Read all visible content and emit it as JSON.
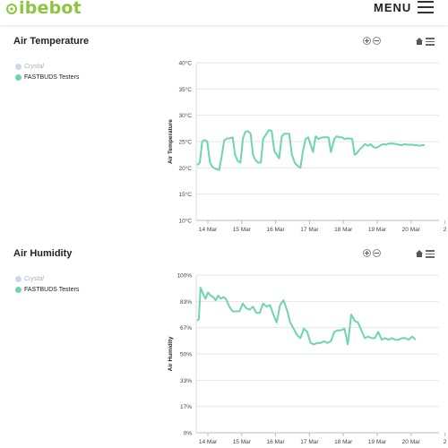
{
  "header": {
    "logo_text": "ibebot",
    "menu_label": "MENU",
    "brand_color": "#8cc63f"
  },
  "legend": {
    "items": [
      {
        "label": "Crystal",
        "color": "#c9d9ec",
        "muted": true
      },
      {
        "label": "FASTBUDS Testers",
        "color": "#6fd6a8",
        "muted": false
      }
    ]
  },
  "chart_data": [
    {
      "type": "line",
      "title": "Air Temperature",
      "ylabel": "Air Temperature",
      "yticks": [
        "10°C",
        "15°C",
        "20°C",
        "25°C",
        "30°C",
        "35°C",
        "40°C"
      ],
      "ylim": [
        10,
        40
      ],
      "xticks": [
        "14 Mar",
        "15 Mar",
        "16 Mar",
        "17 Mar",
        "18 Mar",
        "19 Mar",
        "20 Mar",
        "2"
      ],
      "line_color": "#6fd6a8",
      "series": [
        {
          "name": "FASTBUDS Testers",
          "x": [
            0.0,
            0.08,
            0.15,
            0.22,
            0.3,
            0.38,
            0.45,
            0.55,
            0.65,
            0.72,
            0.8,
            0.88,
            0.95,
            1.05,
            1.12,
            1.2,
            1.28,
            1.35,
            1.42,
            1.5,
            1.58,
            1.65,
            1.72,
            1.8,
            1.88,
            1.95,
            2.05,
            2.12,
            2.2,
            2.28,
            2.35,
            2.42,
            2.5,
            2.58,
            2.65,
            2.72,
            2.8,
            2.88,
            2.95,
            3.05,
            3.12,
            3.2,
            3.28,
            3.35,
            3.42,
            3.5,
            3.58,
            3.65,
            3.72,
            3.8,
            3.88,
            3.95,
            4.05,
            4.12,
            4.2,
            4.28,
            4.35,
            4.42,
            4.5,
            4.58,
            4.65,
            4.72,
            4.8,
            4.88,
            4.95,
            5.05,
            5.12,
            5.2,
            5.28,
            5.35,
            5.42,
            5.5,
            5.58,
            5.65,
            5.72,
            5.8,
            5.88,
            5.95,
            6.05,
            6.12,
            6.2,
            6.28,
            6.35,
            6.42,
            6.5,
            6.58,
            6.65,
            6.72
          ],
          "values": [
            20.5,
            21.0,
            25.0,
            25.3,
            25.0,
            21.0,
            20.2,
            19.8,
            19.6,
            22.0,
            25.2,
            25.6,
            25.6,
            25.8,
            22.5,
            21.3,
            21.0,
            25.5,
            26.8,
            27.0,
            26.5,
            22.5,
            21.5,
            21.0,
            21.0,
            25.5,
            26.5,
            27.2,
            27.0,
            23.2,
            22.5,
            21.8,
            26.0,
            26.5,
            26.5,
            26.5,
            22.5,
            21.0,
            20.5,
            20.0,
            23.0,
            25.5,
            25.8,
            24.5,
            23.0,
            26.0,
            25.5,
            25.7,
            25.8,
            25.8,
            25.8,
            23.0,
            25.5,
            26.0,
            25.8,
            25.8,
            25.5,
            25.6,
            25.6,
            25.5,
            22.5,
            22.8,
            23.5,
            24.0,
            24.5,
            24.2,
            24.5,
            24.0,
            23.8,
            24.0,
            24.3,
            24.5,
            24.4,
            24.6,
            24.6,
            24.6,
            24.5,
            24.4,
            24.3,
            24.5,
            24.4,
            24.4,
            24.4,
            24.3,
            24.3,
            24.2,
            24.3,
            24.3
          ]
        }
      ]
    },
    {
      "type": "line",
      "title": "Air Humidity",
      "ylabel": "Air Humidity",
      "yticks": [
        "0%",
        "17%",
        "33%",
        "50%",
        "67%",
        "83%",
        "100%"
      ],
      "ylim": [
        0,
        100
      ],
      "xticks": [
        "14 Mar",
        "15 Mar",
        "16 Mar",
        "17 Mar",
        "18 Mar",
        "19 Mar",
        "20 Mar",
        "2"
      ],
      "line_color": "#6fd6a8",
      "series": [
        {
          "name": "FASTBUDS Testers",
          "x": [
            0.0,
            0.05,
            0.1,
            0.18,
            0.25,
            0.32,
            0.4,
            0.48,
            0.55,
            0.62,
            0.7,
            0.78,
            0.85,
            0.95,
            1.05,
            1.15,
            1.25,
            1.35,
            1.45,
            1.55,
            1.65,
            1.75,
            1.85,
            1.95,
            2.05,
            2.15,
            2.25,
            2.35,
            2.45,
            2.55,
            2.65,
            2.75,
            2.85,
            2.95,
            3.05,
            3.15,
            3.25,
            3.35,
            3.45,
            3.55,
            3.65,
            3.75,
            3.85,
            3.95,
            4.05,
            4.15,
            4.25,
            4.35,
            4.45,
            4.55,
            4.65,
            4.75,
            4.85,
            4.95,
            5.05,
            5.15,
            5.25,
            5.35,
            5.45,
            5.55,
            5.65,
            5.75,
            5.85,
            5.95,
            6.05,
            6.15,
            6.25,
            6.35,
            6.45
          ],
          "values": [
            71,
            72,
            92,
            88,
            85,
            89,
            87,
            86,
            84,
            87,
            85,
            86,
            85,
            80,
            77,
            77,
            77,
            82,
            79,
            78,
            80,
            76,
            76,
            82,
            80,
            81,
            75,
            70,
            81,
            84,
            78,
            70,
            66,
            62,
            60,
            66,
            64,
            57,
            56,
            57,
            57,
            58,
            57,
            58,
            64,
            65,
            65,
            66,
            56,
            75,
            71,
            70,
            65,
            60,
            61,
            60,
            60,
            64,
            59,
            60,
            59,
            60,
            59,
            59,
            60,
            60,
            59,
            61,
            59
          ]
        }
      ]
    }
  ]
}
